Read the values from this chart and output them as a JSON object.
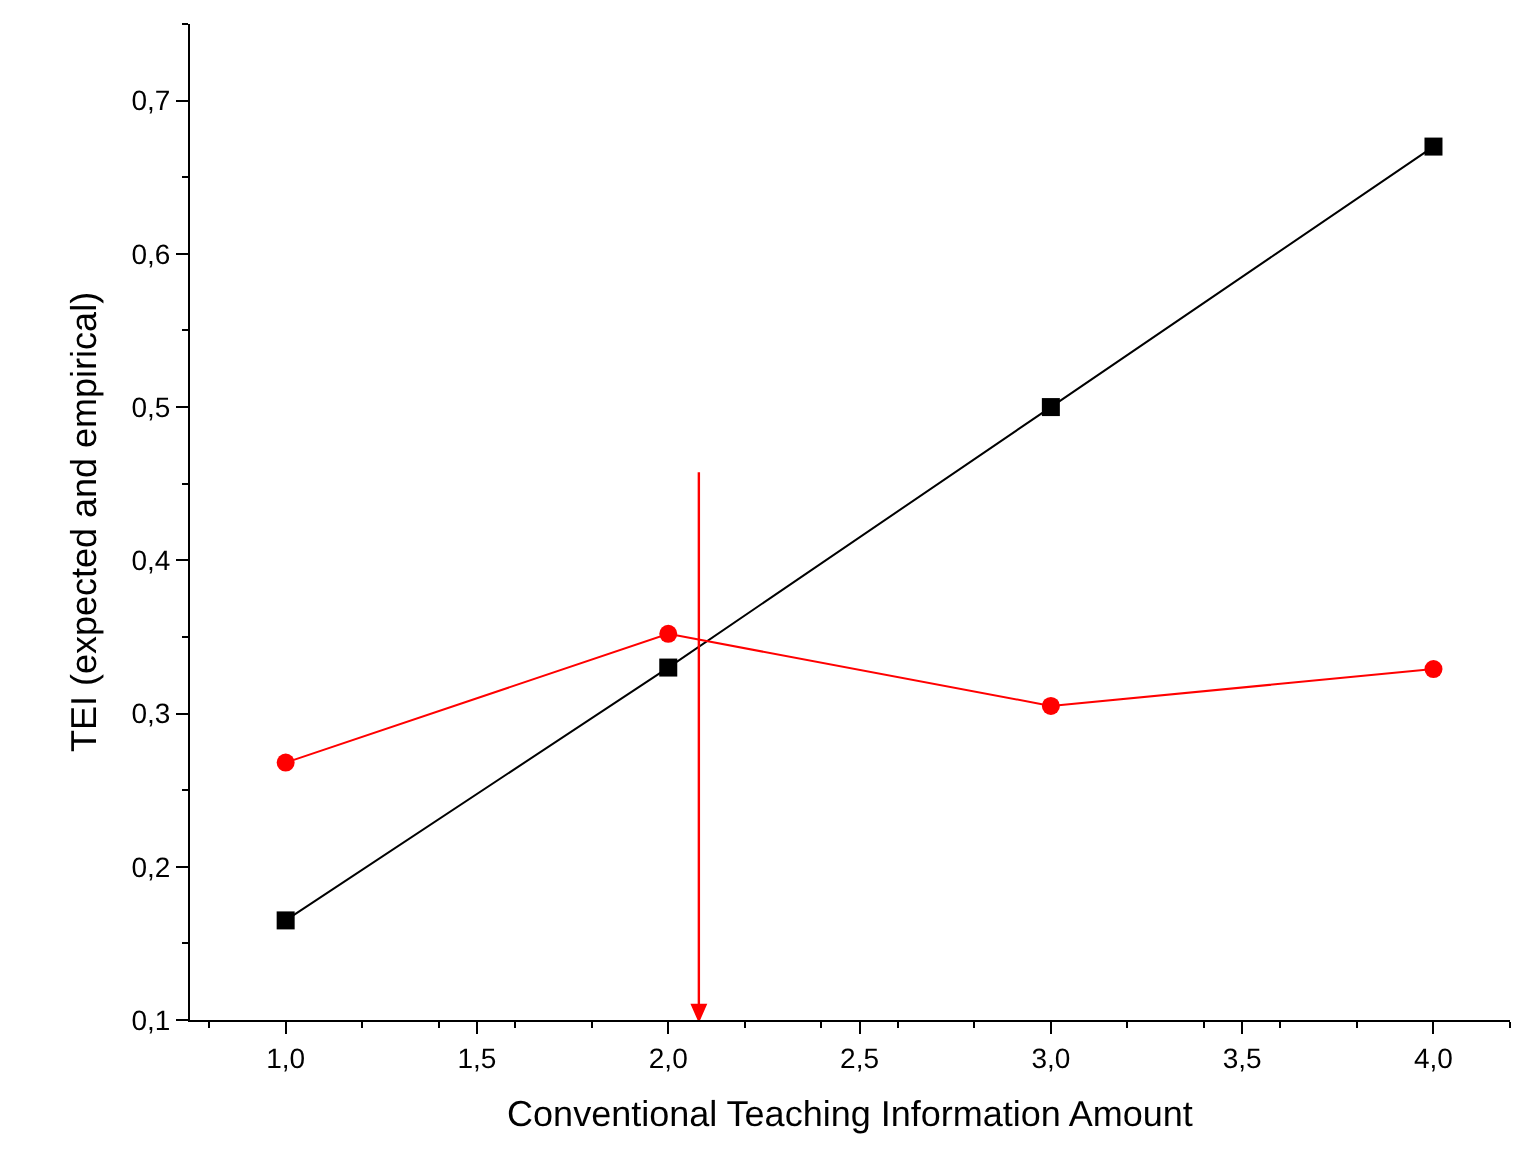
{
  "chart_data": {
    "type": "line",
    "xlabel": "Conventional Teaching Information Amount",
    "ylabel": "TEI (expected and empirical)",
    "x": [
      1,
      2,
      3,
      4
    ],
    "series": [
      {
        "color": "#000000",
        "marker": "square",
        "values": [
          0.165,
          0.33,
          0.5,
          0.67
        ]
      },
      {
        "color": "#ff0000",
        "marker": "circle",
        "values": [
          0.268,
          0.352,
          0.305,
          0.329
        ]
      }
    ],
    "xlim": [
      0.75,
      4.2
    ],
    "ylim": [
      0.1,
      0.75
    ],
    "xticks": [
      {
        "value": 1,
        "label": "1,0"
      },
      {
        "value": 1.5,
        "label": "1,5"
      },
      {
        "value": 2,
        "label": "2,0"
      },
      {
        "value": 2.5,
        "label": "2,5"
      },
      {
        "value": 3,
        "label": "3,0"
      },
      {
        "value": 3.5,
        "label": "3,5"
      },
      {
        "value": 4,
        "label": "4,0"
      }
    ],
    "yticks": [
      {
        "value": 0.1,
        "label": "0,1"
      },
      {
        "value": 0.2,
        "label": "0,2"
      },
      {
        "value": 0.3,
        "label": "0,3"
      },
      {
        "value": 0.4,
        "label": "0,4"
      },
      {
        "value": 0.5,
        "label": "0,5"
      },
      {
        "value": 0.6,
        "label": "0,6"
      },
      {
        "value": 0.7,
        "label": "0,7"
      }
    ],
    "ref_lines": [
      {
        "axis": "x",
        "value": 2.08,
        "color": "#ff0000"
      }
    ],
    "grid": false
  }
}
